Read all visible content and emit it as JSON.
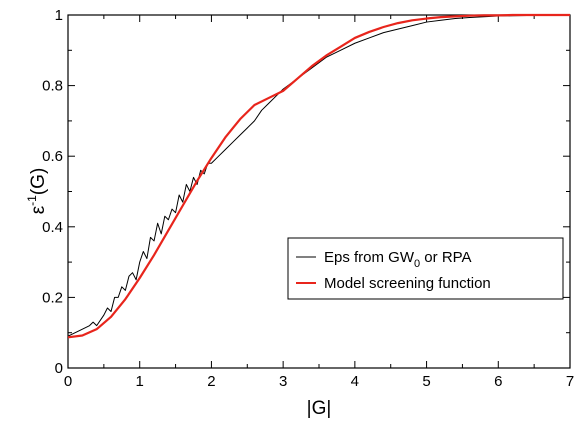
{
  "chart_data": {
    "type": "line",
    "title": "",
    "xlabel": "|G|",
    "ylabel_main": "ε",
    "ylabel_sup": "-1",
    "ylabel_tail": "(G)",
    "xlim": [
      0,
      7
    ],
    "ylim": [
      0,
      1
    ],
    "x_ticks": [
      0,
      1,
      2,
      3,
      4,
      5,
      6,
      7
    ],
    "y_ticks": [
      0,
      0.2,
      0.4,
      0.6,
      0.8,
      1
    ],
    "x_tick_labels": [
      "0",
      "1",
      "2",
      "3",
      "4",
      "5",
      "6",
      "7"
    ],
    "y_tick_labels": [
      "0",
      "0.2",
      "0.4",
      "0.6",
      "0.8",
      "1"
    ],
    "grid": false,
    "legend_position": "right-center",
    "series": [
      {
        "name_main": "Eps from GW",
        "name_sub": "0",
        "name_tail": " or RPA",
        "color": "#000000",
        "x": [
          0,
          0.1,
          0.2,
          0.3,
          0.35,
          0.4,
          0.5,
          0.55,
          0.6,
          0.65,
          0.7,
          0.75,
          0.8,
          0.85,
          0.9,
          0.95,
          1.0,
          1.05,
          1.1,
          1.15,
          1.2,
          1.25,
          1.3,
          1.35,
          1.4,
          1.45,
          1.5,
          1.55,
          1.6,
          1.65,
          1.7,
          1.75,
          1.8,
          1.85,
          1.9,
          1.95,
          2.0,
          2.1,
          2.2,
          2.3,
          2.4,
          2.5,
          2.6,
          2.7,
          2.8,
          2.9,
          3.0,
          3.2,
          3.4,
          3.6,
          3.8,
          4.0,
          4.2,
          4.4,
          4.6,
          4.8,
          5.0,
          5.2,
          5.4,
          5.6,
          5.8,
          6.0,
          6.2,
          6.5,
          7.0
        ],
        "y": [
          0.09,
          0.1,
          0.11,
          0.12,
          0.13,
          0.12,
          0.15,
          0.17,
          0.16,
          0.2,
          0.2,
          0.23,
          0.22,
          0.26,
          0.27,
          0.25,
          0.3,
          0.33,
          0.31,
          0.37,
          0.36,
          0.41,
          0.38,
          0.43,
          0.42,
          0.45,
          0.44,
          0.49,
          0.47,
          0.52,
          0.5,
          0.54,
          0.52,
          0.56,
          0.55,
          0.58,
          0.58,
          0.6,
          0.62,
          0.64,
          0.66,
          0.68,
          0.7,
          0.73,
          0.75,
          0.77,
          0.79,
          0.82,
          0.85,
          0.88,
          0.9,
          0.92,
          0.935,
          0.95,
          0.96,
          0.97,
          0.98,
          0.985,
          0.99,
          0.993,
          0.995,
          0.997,
          0.998,
          0.999,
          1.0
        ]
      },
      {
        "name": "Model screening function",
        "color": "#e8251c",
        "x": [
          0,
          0.2,
          0.4,
          0.6,
          0.8,
          1.0,
          1.2,
          1.4,
          1.6,
          1.8,
          2.0,
          2.2,
          2.4,
          2.6,
          2.8,
          3.0,
          3.2,
          3.4,
          3.6,
          3.8,
          4.0,
          4.2,
          4.4,
          4.6,
          4.8,
          5.0,
          5.2,
          5.4,
          5.6,
          5.8,
          6.0,
          6.2,
          6.4,
          6.6,
          6.8,
          7.0
        ],
        "y": [
          0.087,
          0.092,
          0.11,
          0.145,
          0.195,
          0.255,
          0.32,
          0.39,
          0.46,
          0.53,
          0.595,
          0.655,
          0.705,
          0.745,
          0.765,
          0.785,
          0.82,
          0.855,
          0.885,
          0.91,
          0.935,
          0.952,
          0.966,
          0.977,
          0.985,
          0.99,
          0.994,
          0.996,
          0.998,
          0.999,
          0.999,
          1.0,
          1.0,
          1.0,
          1.0,
          1.0
        ]
      }
    ]
  }
}
